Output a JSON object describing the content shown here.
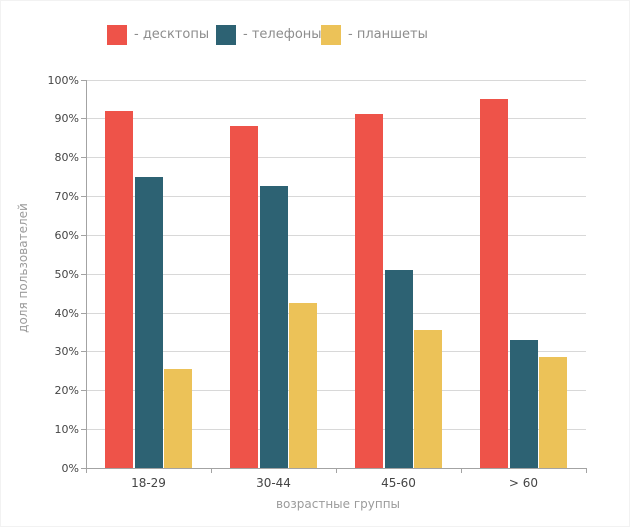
{
  "chart_data": {
    "type": "bar",
    "title": "",
    "categories": [
      "18-29",
      "30-44",
      "45-60",
      "> 60"
    ],
    "series": [
      {
        "name": "десктопы",
        "legend_label": "- десктопы",
        "color": "#ee5349",
        "values": [
          92,
          88,
          91,
          95
        ]
      },
      {
        "name": "телефоны",
        "legend_label": "- телефоны",
        "color": "#2d6273",
        "values": [
          75,
          72.5,
          51,
          33
        ]
      },
      {
        "name": "планшеты",
        "legend_label": "- планшеты",
        "color": "#ecc258",
        "values": [
          25.5,
          42.5,
          35.5,
          28.5
        ]
      }
    ],
    "xlabel": "возрастные группы",
    "ylabel": "доля пользователей",
    "ylim": [
      0,
      100
    ],
    "ytick_step": 10,
    "ytick_suffix": "%",
    "ytick_labels": [
      "0%",
      "10%",
      "20%",
      "30%",
      "40%",
      "50%",
      "60%",
      "70%",
      "80%",
      "90%",
      "100%"
    ],
    "grid": true,
    "legend_position": "top",
    "colors": {
      "gridline": "#d8d8d8",
      "axis": "#a3a3a3",
      "tick_label": "#454545",
      "axis_title": "#9b9b9b",
      "legend_text": "#8d8d8d",
      "background": "#ffffff"
    }
  }
}
